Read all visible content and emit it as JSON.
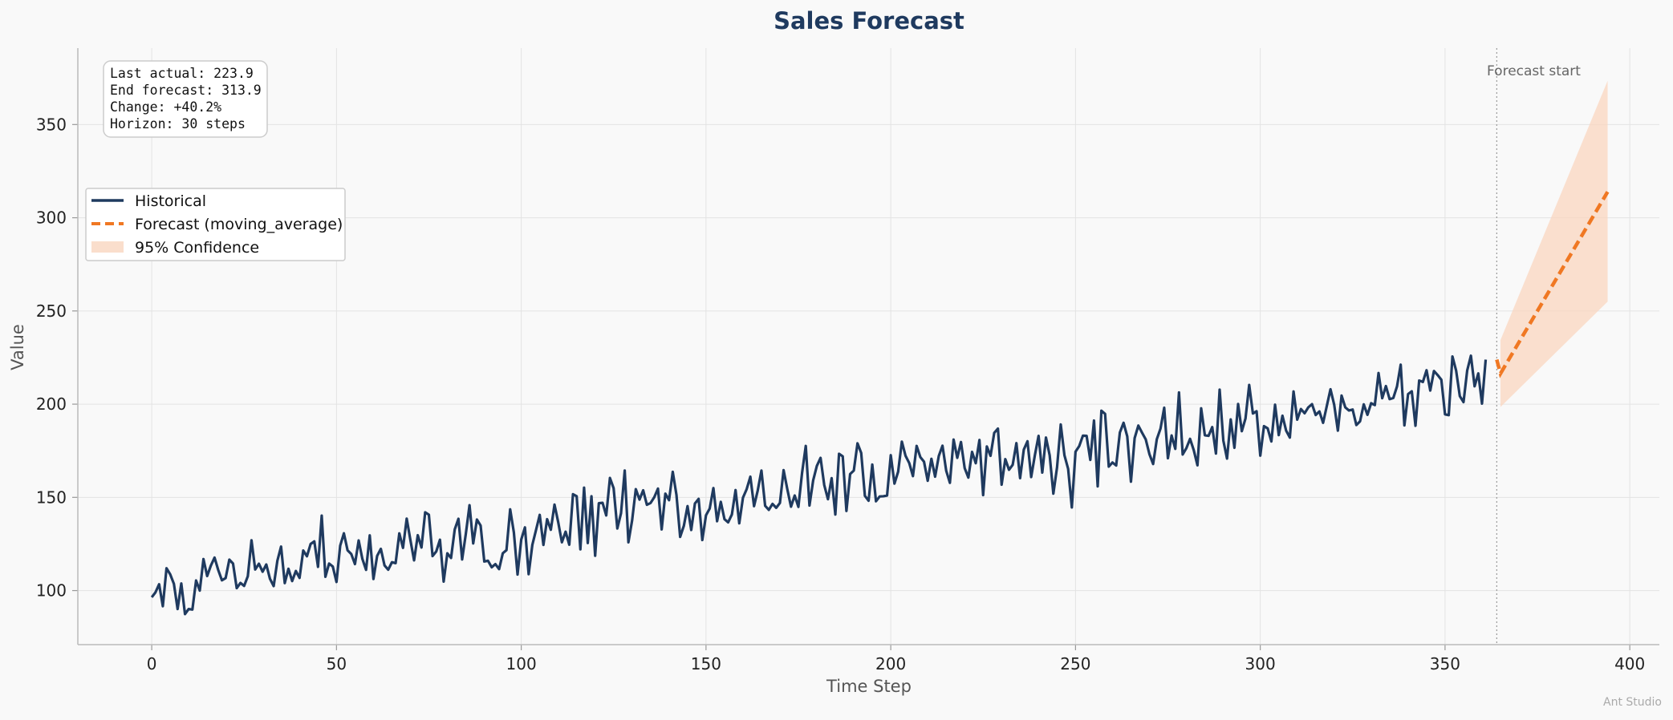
{
  "chart_data": {
    "type": "line",
    "title": "Sales Forecast",
    "xlabel": "Time Step",
    "ylabel": "Value",
    "xlim": [
      -20,
      408
    ],
    "ylim": [
      71,
      391
    ],
    "x_ticks": [
      0,
      50,
      100,
      150,
      200,
      250,
      300,
      350,
      400
    ],
    "y_ticks": [
      100,
      150,
      200,
      250,
      300,
      350
    ],
    "grid": true,
    "legend_position": "upper-left",
    "colors": {
      "historical": "#1f3a5f",
      "forecast": "#f07823",
      "confidence": "#f9d6bf"
    },
    "legend": [
      {
        "key": "historical",
        "label": "Historical"
      },
      {
        "key": "forecast",
        "label": "Forecast (moving_average)"
      },
      {
        "key": "confidence",
        "label": "95% Confidence"
      }
    ],
    "stats_box": [
      "Last actual: 223.9",
      "End forecast: 313.9",
      "Change: +40.2%",
      "Horizon: 30 steps"
    ],
    "forecast_start": {
      "x": 364,
      "label": "Forecast start"
    },
    "series": [
      {
        "name": "Historical",
        "x_start": 0,
        "x_step": 1,
        "values": [
          96.4,
          99.0,
          103.4,
          91.6,
          112.0,
          108.7,
          103.6,
          90.1,
          103.8,
          87.4,
          90.1,
          89.8,
          105.4,
          100.0,
          116.9,
          107.8,
          113.4,
          117.7,
          111.0,
          105.5,
          106.7,
          116.6,
          114.5,
          101.3,
          104.1,
          102.5,
          107.7,
          127.0,
          111.3,
          114.4,
          110.1,
          114.0,
          106.3,
          102.4,
          116.0,
          123.6,
          104.0,
          111.7,
          105.1,
          110.5,
          106.8,
          121.5,
          118.4,
          125.0,
          126.4,
          112.7,
          140.2,
          107.4,
          114.5,
          112.9,
          104.6,
          124.1,
          130.7,
          121.6,
          119.6,
          114.2,
          126.9,
          117.0,
          111.1,
          129.6,
          106.2,
          118.6,
          122.4,
          113.5,
          111.2,
          115.2,
          114.7,
          130.7,
          122.9,
          138.6,
          127.1,
          116.2,
          129.7,
          123.1,
          142.0,
          140.7,
          118.5,
          121.0,
          127.3,
          104.8,
          120.0,
          117.5,
          132.8,
          138.5,
          116.7,
          130.4,
          145.8,
          125.3,
          138.1,
          134.9,
          115.6,
          116.0,
          112.5,
          114.2,
          111.5,
          120.0,
          121.7,
          143.6,
          131.2,
          108.6,
          127.4,
          133.9,
          108.8,
          124.5,
          132.5,
          140.6,
          124.5,
          138.3,
          132.6,
          146.1,
          136.7,
          125.9,
          131.6,
          124.6,
          151.7,
          150.6,
          122.1,
          155.2,
          125.5,
          150.6,
          118.7,
          146.9,
          147.1,
          140.3,
          160.4,
          154.9,
          133.3,
          141.5,
          164.4,
          125.9,
          137.6,
          154.4,
          148.8,
          153.8,
          146.0,
          147.0,
          150.1,
          154.7,
          132.8,
          152.0,
          148.5,
          163.7,
          151.4,
          128.8,
          134.7,
          145.3,
          132.5,
          146.7,
          149.2,
          127.1,
          140.4,
          144.0,
          155.0,
          137.2,
          147.6,
          138.3,
          136.6,
          140.8,
          153.9,
          136.1,
          149.8,
          154.4,
          161.1,
          145.3,
          153.7,
          164.4,
          145.5,
          143.3,
          146.5,
          144.4,
          147.0,
          164.6,
          154.4,
          145.0,
          151.0,
          144.9,
          163.2,
          177.6,
          145.6,
          159.1,
          166.9,
          171.2,
          156.6,
          149.0,
          160.3,
          140.8,
          173.4,
          172.0,
          142.7,
          162.5,
          164.4,
          179.0,
          173.8,
          150.8,
          148.2,
          167.6,
          147.9,
          150.5,
          150.6,
          151.0,
          172.6,
          157.4,
          163.8,
          179.9,
          172.3,
          168.4,
          161.4,
          177.6,
          171.6,
          169.1,
          158.9,
          170.7,
          161.1,
          172.2,
          177.7,
          164.3,
          157.8,
          181.0,
          171.2,
          179.7,
          165.7,
          160.6,
          174.4,
          168.3,
          180.8,
          151.2,
          177.3,
          172.3,
          184.6,
          186.9,
          156.8,
          170.5,
          164.8,
          167.5,
          179.1,
          160.3,
          175.6,
          180.1,
          160.9,
          172.6,
          183.0,
          163.3,
          182.1,
          172.6,
          152.0,
          166.1,
          189.1,
          172.6,
          165.3,
          144.6,
          174.5,
          177.5,
          183.1,
          183.0,
          170.1,
          191.2,
          155.9,
          196.5,
          194.8,
          166.5,
          168.7,
          167.1,
          184.8,
          190.0,
          182.7,
          158.4,
          181.8,
          188.5,
          184.7,
          181.1,
          173.2,
          167.9,
          181.2,
          186.9,
          198.1,
          171.0,
          183.2,
          176.0,
          206.3,
          173.0,
          176.4,
          181.4,
          175.3,
          167.2,
          197.8,
          183.3,
          183.0,
          187.7,
          173.5,
          207.8,
          180.5,
          170.8,
          191.8,
          176.6,
          200.1,
          185.5,
          192.3,
          210.3,
          195.0,
          196.2,
          172.4,
          188.2,
          187.0,
          180.0,
          199.7,
          183.4,
          193.8,
          185.8,
          182.1,
          206.8,
          191.7,
          197.4,
          195.1,
          198.3,
          200.0,
          194.2,
          196.1,
          190.0,
          199.0,
          208.0,
          199.7,
          185.8,
          204.6,
          198.3,
          196.6,
          197.1,
          188.8,
          190.8,
          199.9,
          194.3,
          200.5,
          199.5,
          216.7,
          203.2,
          209.7,
          202.7,
          203.3,
          209.5,
          221.2,
          188.6,
          205.4,
          206.9,
          188.4,
          212.7,
          211.9,
          218.2,
          207.3,
          217.8,
          215.6,
          213.1,
          194.5,
          194.1,
          225.6,
          218.0,
          204.3,
          201.1,
          218.1,
          226.0,
          209.6,
          216.5,
          200.3,
          223.9
        ]
      },
      {
        "name": "Forecast (moving_average)",
        "x": [
          364,
          365,
          394
        ],
        "values": [
          223.9,
          216.4,
          313.9
        ]
      },
      {
        "name": "95% Confidence",
        "x": [
          365,
          394
        ],
        "lower": [
          198.5,
          255.0
        ],
        "upper": [
          234.4,
          373.5
        ]
      }
    ],
    "watermark": "Ant Studio"
  }
}
